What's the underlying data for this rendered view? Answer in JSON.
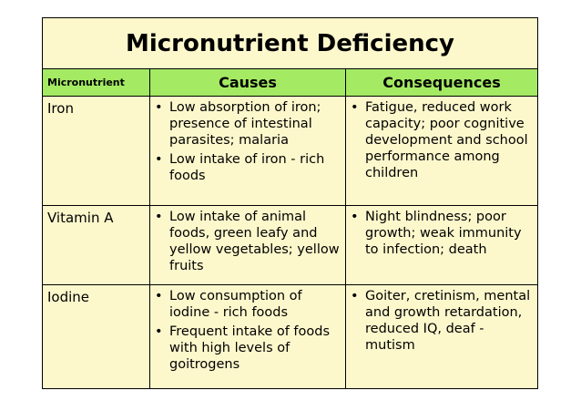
{
  "title": "Micronutrient Deficiency",
  "headers": {
    "micronutrient": "Micronutrient",
    "causes": "Causes",
    "consequences": "Consequences"
  },
  "rows": [
    {
      "name": "Iron",
      "causes": [
        "Low absorption of iron; presence of intestinal parasites; malaria",
        "Low intake of iron - rich foods"
      ],
      "consequences": [
        "Fatigue, reduced work capacity; poor cognitive development and school performance among children"
      ]
    },
    {
      "name": "Vitamin A",
      "causes": [
        "Low intake of animal foods, green leafy and yellow vegetables; yellow fruits"
      ],
      "consequences": [
        "Night blindness; poor growth; weak immunity to infection; death"
      ]
    },
    {
      "name": "Iodine",
      "causes": [
        "Low consumption of iodine - rich foods",
        "Frequent intake of foods with high levels of goitrogens"
      ],
      "consequences": [
        "Goiter, cretinism, mental and growth retardation, reduced IQ, deaf - mutism"
      ]
    }
  ],
  "colors": {
    "header_bg": "#a4ea63",
    "body_bg": "#fdf8cc"
  }
}
